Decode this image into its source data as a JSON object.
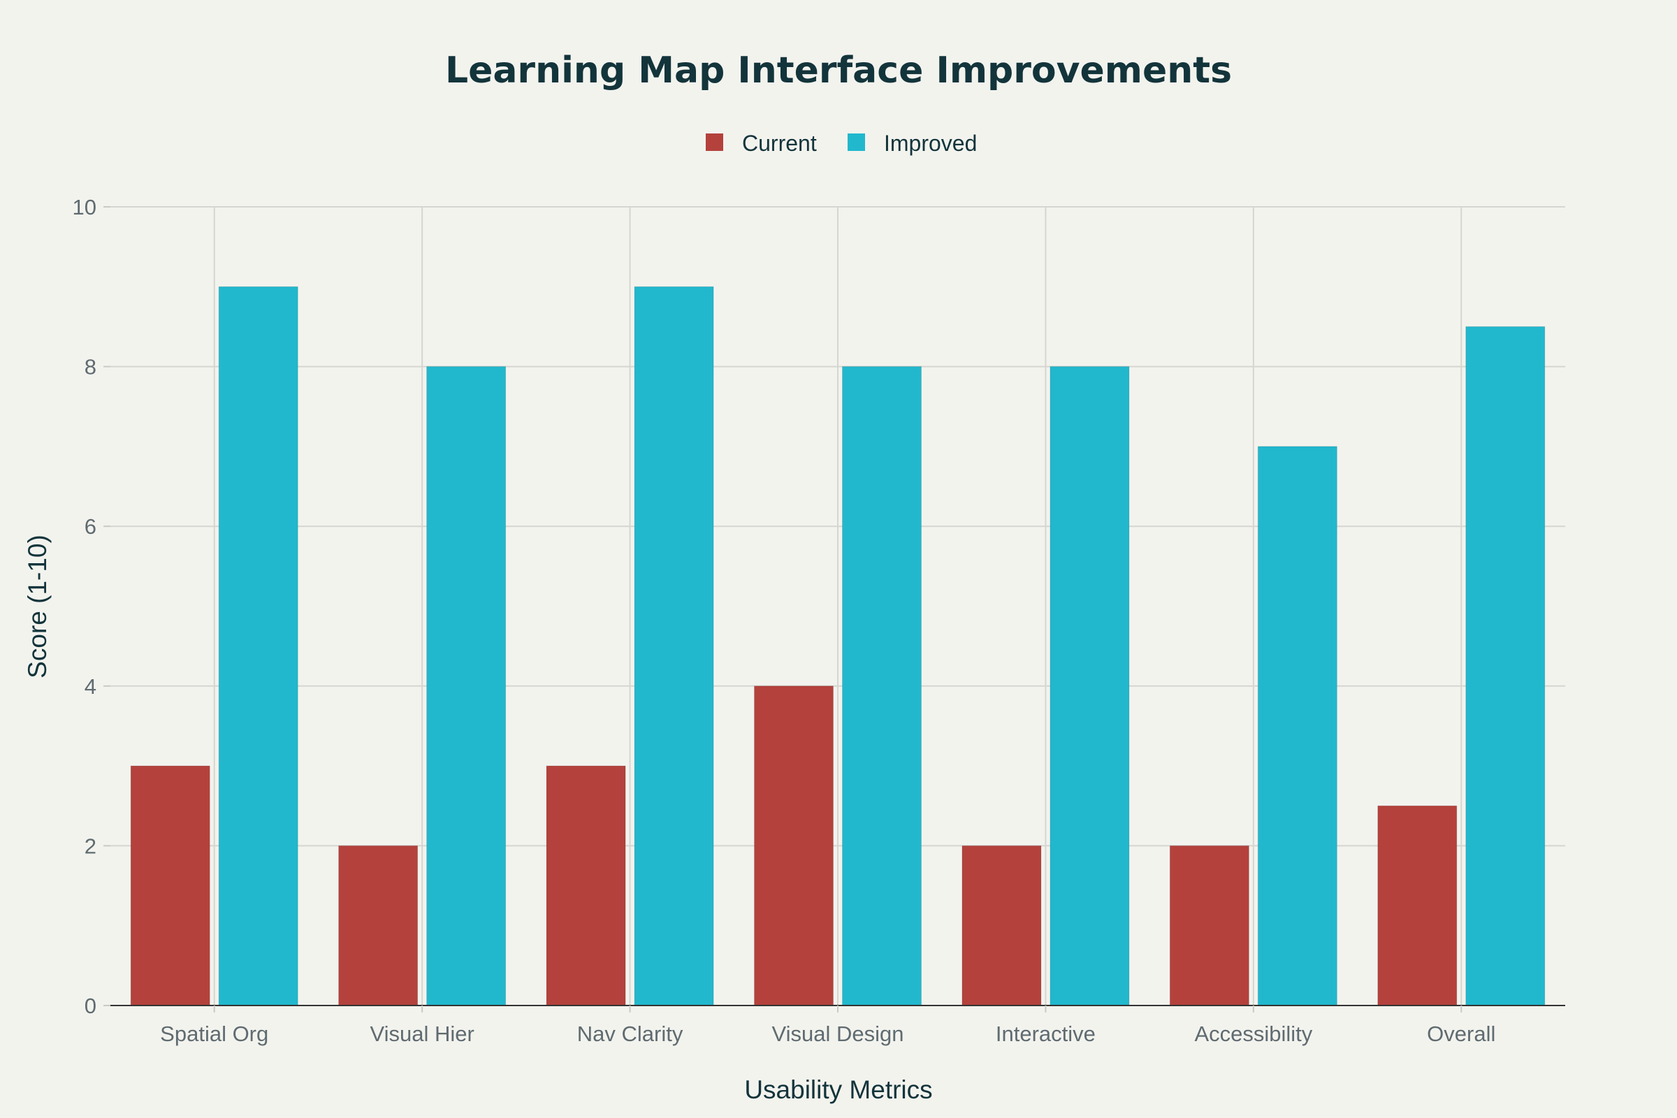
{
  "chart_data": {
    "type": "bar",
    "title": "Learning Map Interface Improvements",
    "xlabel": "Usability Metrics",
    "ylabel": "Score (1-10)",
    "categories": [
      "Spatial Org",
      "Visual Hier",
      "Nav Clarity",
      "Visual Design",
      "Interactive",
      "Accessibility",
      "Overall"
    ],
    "series": [
      {
        "name": "Current",
        "color": "#b4413c",
        "values": [
          3,
          2,
          3,
          4,
          2,
          2,
          2.5
        ]
      },
      {
        "name": "Improved",
        "color": "#21b8cd",
        "values": [
          9,
          8,
          9,
          8,
          8,
          7,
          8.5
        ]
      }
    ],
    "ylim": [
      0,
      10
    ],
    "yticks": [
      0,
      2,
      4,
      6,
      8,
      10
    ],
    "grid": true,
    "legend_position": "top-center"
  }
}
